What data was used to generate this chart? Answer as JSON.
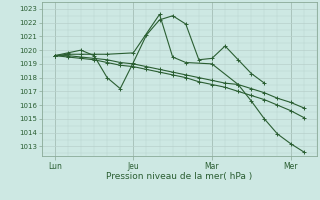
{
  "xlabel": "Pression niveau de la mer( hPa )",
  "bg_color": "#cde8e3",
  "grid_color": "#b8d0cb",
  "line_color": "#2a5e32",
  "spine_color": "#8aaa98",
  "ylim": [
    1012.3,
    1023.5
  ],
  "yticks": [
    1013,
    1014,
    1015,
    1016,
    1017,
    1018,
    1019,
    1020,
    1021,
    1022,
    1023
  ],
  "xlim": [
    0,
    10.5
  ],
  "day_labels": [
    "Lun",
    "Jeu",
    "Mar",
    "Mer"
  ],
  "day_positions": [
    0.5,
    3.5,
    6.5,
    9.5
  ],
  "vline_positions": [
    0.5,
    3.5,
    6.5,
    9.5
  ],
  "s1x": [
    0.5,
    1.0,
    1.5,
    2.0,
    2.5,
    3.0,
    3.5,
    4.0,
    4.5,
    5.0,
    5.5,
    6.0,
    6.5,
    7.0,
    7.5,
    8.0,
    8.5
  ],
  "s1y": [
    1019.6,
    1019.8,
    1020.0,
    1019.6,
    1018.0,
    1017.2,
    1019.1,
    1021.1,
    1022.2,
    1022.5,
    1021.9,
    1019.3,
    1019.4,
    1020.3,
    1019.3,
    1018.3,
    1017.6
  ],
  "s2x": [
    0.5,
    1.0,
    1.5,
    2.0,
    2.5,
    3.0,
    3.5,
    4.0,
    4.5,
    5.0,
    5.5,
    6.0,
    6.5,
    7.0,
    7.5,
    8.0,
    8.5,
    9.0,
    9.5,
    10.0
  ],
  "s2y": [
    1019.6,
    1019.6,
    1019.5,
    1019.4,
    1019.3,
    1019.1,
    1019.0,
    1018.8,
    1018.6,
    1018.4,
    1018.2,
    1018.0,
    1017.8,
    1017.6,
    1017.5,
    1017.2,
    1016.9,
    1016.5,
    1016.2,
    1015.8
  ],
  "s3x": [
    0.5,
    1.0,
    1.5,
    2.0,
    2.5,
    3.0,
    3.5,
    4.0,
    4.5,
    5.0,
    5.5,
    6.0,
    6.5,
    7.0,
    7.5,
    8.0,
    8.5,
    9.0,
    9.5,
    10.0
  ],
  "s3y": [
    1019.6,
    1019.5,
    1019.4,
    1019.3,
    1019.1,
    1018.9,
    1018.8,
    1018.6,
    1018.4,
    1018.2,
    1018.0,
    1017.7,
    1017.5,
    1017.3,
    1017.0,
    1016.7,
    1016.4,
    1016.0,
    1015.6,
    1015.1
  ],
  "s4x": [
    0.5,
    1.0,
    1.5,
    2.0,
    2.5,
    3.5,
    4.5,
    5.0,
    5.5,
    6.5,
    7.5,
    8.0,
    8.5,
    9.0,
    9.5,
    10.0
  ],
  "s4y": [
    1019.6,
    1019.7,
    1019.7,
    1019.7,
    1019.7,
    1019.8,
    1022.6,
    1019.5,
    1019.1,
    1019.0,
    1017.5,
    1016.3,
    1015.0,
    1013.9,
    1013.2,
    1012.6
  ]
}
